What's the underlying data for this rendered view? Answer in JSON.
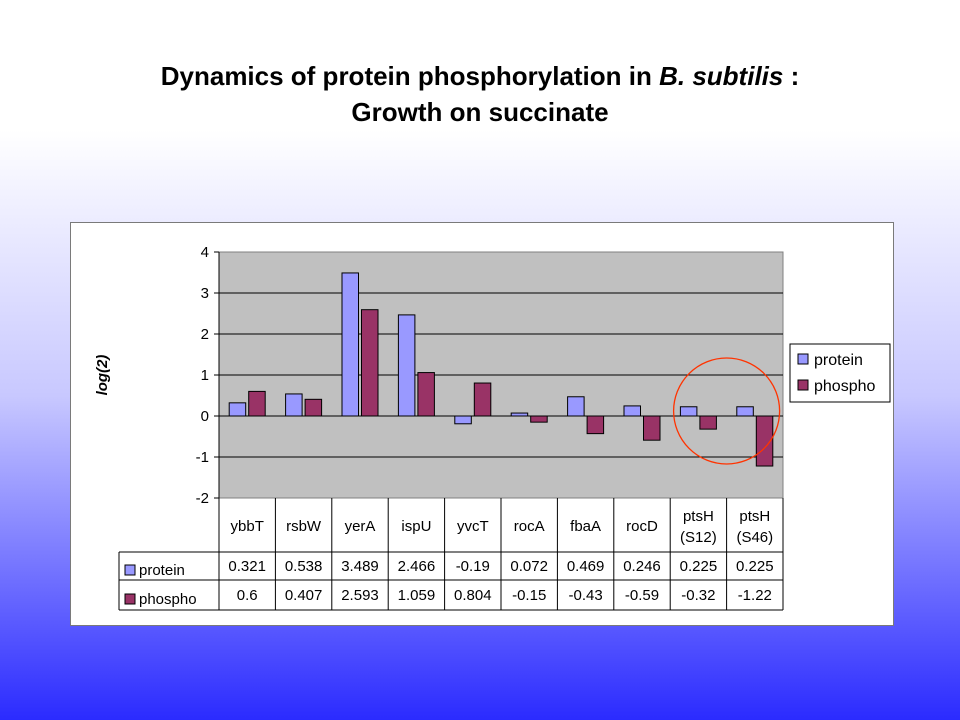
{
  "title": {
    "line1_prefix": "Dynamics of protein phosphorylation in ",
    "line1_italic": "B. subtilis",
    "line1_suffix": " :",
    "line2": "Growth on succinate"
  },
  "chart_data": {
    "type": "bar",
    "ylabel": "log(2)",
    "ylim": [
      -2,
      4
    ],
    "yticks": [
      4,
      3,
      2,
      1,
      0,
      -1,
      -2
    ],
    "grid": true,
    "legend_position": "right",
    "categories": [
      [
        "ybbT"
      ],
      [
        "rsbW"
      ],
      [
        "yerA"
      ],
      [
        "ispU"
      ],
      [
        "yvcT"
      ],
      [
        "rocA"
      ],
      [
        "fbaA"
      ],
      [
        "rocD"
      ],
      [
        "ptsH",
        "(S12)"
      ],
      [
        "ptsH",
        "(S46)"
      ]
    ],
    "series": [
      {
        "name": "protein",
        "color": "#9999ff",
        "values": [
          0.321,
          0.538,
          3.489,
          2.466,
          -0.19,
          0.072,
          0.469,
          0.246,
          0.225,
          0.225
        ],
        "labels": [
          "0.321",
          "0.538",
          "3.489",
          "2.466",
          "-0.19",
          "0.072",
          "0.469",
          "0.246",
          "0.225",
          "0.225"
        ]
      },
      {
        "name": "phospho",
        "color": "#993366",
        "values": [
          0.6,
          0.407,
          2.593,
          1.059,
          0.804,
          -0.15,
          -0.43,
          -0.59,
          -0.32,
          -1.22
        ],
        "labels": [
          "0.6",
          "0.407",
          "2.593",
          "1.059",
          "0.804",
          "-0.15",
          "-0.43",
          "-0.59",
          "-0.32",
          "-1.22"
        ]
      }
    ],
    "plot_background": "#c0c0c0",
    "annotation": {
      "type": "circle",
      "color": "#ff3300",
      "target_categories": [
        8,
        9
      ]
    }
  }
}
